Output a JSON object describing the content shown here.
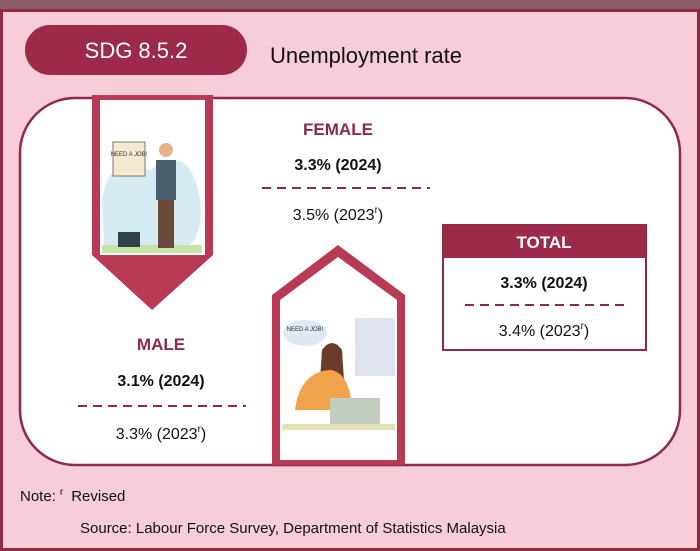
{
  "header": {
    "code": "SDG 8.5.2",
    "title": "Unemployment rate"
  },
  "female": {
    "label": "FEMALE",
    "current": "3.3% (2024)",
    "previous": "3.5% (2023",
    "previous_mark": "r",
    "previous_close": ")",
    "sign": "NEED A JOB!"
  },
  "male": {
    "label": "MALE",
    "current": "3.1% (2024)",
    "previous": "3.3% (2023",
    "previous_mark": "r",
    "previous_close": ")",
    "sign": "NEED A JOB!"
  },
  "total": {
    "label": "TOTAL",
    "current": "3.3% (2024)",
    "previous": "3.4% (2023",
    "previous_mark": "r",
    "previous_close": ")"
  },
  "note": {
    "label": "Note:",
    "mark": "r",
    "text": "Revised"
  },
  "source": "Source: Labour Force Survey, Department of Statistics Malaysia"
}
